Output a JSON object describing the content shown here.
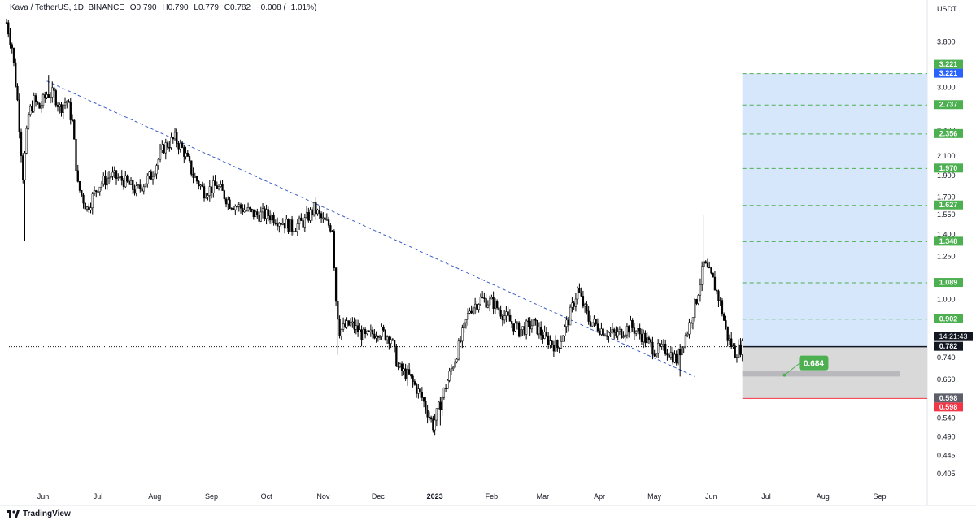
{
  "header": {
    "symbol": "Kava / TetherUS, 1D, BINANCE",
    "open": "O0.790",
    "high": "H0.790",
    "low": "L0.779",
    "close": "C0.782",
    "change": "−0.008 (−1.01%)"
  },
  "footer": {
    "brand": "TradingView",
    "logo_icon": "tradingview-logo-icon"
  },
  "chart_data": {
    "type": "candlestick",
    "title": "",
    "xlabel": "",
    "ylabel": "USDT",
    "y_scale": "log",
    "ylim": [
      0.38,
      4.3
    ],
    "y_ticks": [
      "3.800",
      "3.000",
      "2.400",
      "2.100",
      "1.900",
      "1.700",
      "1.550",
      "1.400",
      "1.250",
      "1.000",
      "0.740",
      "0.660",
      "0.540",
      "0.490",
      "0.445",
      "0.405"
    ],
    "x_ticks": [
      "Jun",
      "Jul",
      "Aug",
      "Sep",
      "Oct",
      "Nov",
      "Dec",
      "2023",
      "Feb",
      "Mar",
      "Apr",
      "May",
      "Jun",
      "Jul",
      "Aug",
      "Sep"
    ],
    "x_range": [
      "2022-05-12",
      "2023-09-27"
    ],
    "price_series": {
      "name": "Kava / TetherUS",
      "points": [
        [
          "2022-05-12",
          4.2
        ],
        [
          "2022-05-15",
          3.7
        ],
        [
          "2022-05-18",
          2.8
        ],
        [
          "2022-05-21",
          1.9
        ],
        [
          "2022-05-24",
          2.6
        ],
        [
          "2022-05-27",
          2.8
        ],
        [
          "2022-05-30",
          2.7
        ],
        [
          "2022-06-03",
          2.9
        ],
        [
          "2022-06-07",
          2.9
        ],
        [
          "2022-06-10",
          2.7
        ],
        [
          "2022-06-14",
          2.8
        ],
        [
          "2022-06-17",
          2.5
        ],
        [
          "2022-06-20",
          1.8
        ],
        [
          "2022-06-25",
          1.6
        ],
        [
          "2022-07-01",
          1.8
        ],
        [
          "2022-07-08",
          1.9
        ],
        [
          "2022-07-15",
          1.85
        ],
        [
          "2022-07-22",
          1.75
        ],
        [
          "2022-07-30",
          1.9
        ],
        [
          "2022-08-06",
          2.2
        ],
        [
          "2022-08-12",
          2.3
        ],
        [
          "2022-08-17",
          2.15
        ],
        [
          "2022-08-22",
          1.9
        ],
        [
          "2022-08-28",
          1.75
        ],
        [
          "2022-09-04",
          1.8
        ],
        [
          "2022-09-11",
          1.65
        ],
        [
          "2022-09-18",
          1.6
        ],
        [
          "2022-09-25",
          1.55
        ],
        [
          "2022-10-02",
          1.55
        ],
        [
          "2022-10-09",
          1.5
        ],
        [
          "2022-10-15",
          1.45
        ],
        [
          "2022-10-22",
          1.5
        ],
        [
          "2022-10-27",
          1.6
        ],
        [
          "2022-11-01",
          1.5
        ],
        [
          "2022-11-06",
          1.45
        ],
        [
          "2022-11-08",
          1.0
        ],
        [
          "2022-11-10",
          0.85
        ],
        [
          "2022-11-16",
          0.88
        ],
        [
          "2022-11-24",
          0.82
        ],
        [
          "2022-12-01",
          0.85
        ],
        [
          "2022-12-08",
          0.82
        ],
        [
          "2022-12-12",
          0.7
        ],
        [
          "2022-12-18",
          0.67
        ],
        [
          "2022-12-25",
          0.6
        ],
        [
          "2022-12-31",
          0.52
        ],
        [
          "2023-01-06",
          0.62
        ],
        [
          "2023-01-14",
          0.78
        ],
        [
          "2023-01-20",
          0.95
        ],
        [
          "2023-01-26",
          1.0
        ],
        [
          "2023-02-02",
          0.98
        ],
        [
          "2023-02-10",
          0.9
        ],
        [
          "2023-02-16",
          0.85
        ],
        [
          "2023-02-24",
          0.88
        ],
        [
          "2023-03-02",
          0.82
        ],
        [
          "2023-03-09",
          0.78
        ],
        [
          "2023-03-15",
          0.9
        ],
        [
          "2023-03-20",
          1.05
        ],
        [
          "2023-03-26",
          0.9
        ],
        [
          "2023-04-03",
          0.85
        ],
        [
          "2023-04-10",
          0.83
        ],
        [
          "2023-04-18",
          0.87
        ],
        [
          "2023-04-24",
          0.83
        ],
        [
          "2023-05-01",
          0.77
        ],
        [
          "2023-05-08",
          0.77
        ],
        [
          "2023-05-13",
          0.73
        ],
        [
          "2023-05-19",
          0.85
        ],
        [
          "2023-05-24",
          1.0
        ],
        [
          "2023-05-28",
          1.2
        ],
        [
          "2023-06-02",
          1.1
        ],
        [
          "2023-06-06",
          0.98
        ],
        [
          "2023-06-10",
          0.82
        ],
        [
          "2023-06-14",
          0.76
        ],
        [
          "2023-06-18",
          0.782
        ]
      ],
      "spikes": [
        [
          "2022-05-22",
          1.35
        ],
        [
          "2022-06-04",
          3.2
        ],
        [
          "2022-11-09",
          0.75
        ],
        [
          "2023-01-04",
          0.52
        ],
        [
          "2023-05-15",
          0.67
        ],
        [
          "2023-05-28",
          1.55
        ]
      ]
    },
    "trendline": {
      "from": [
        "2022-06-03",
        3.1
      ],
      "to": [
        "2023-05-23",
        0.67
      ],
      "style": "dashed",
      "color": "#3d5cc6"
    },
    "current_price_line": {
      "value": 0.782,
      "style": "dotted"
    },
    "position_tool": {
      "type": "long",
      "start": "2023-06-18",
      "end": "2023-09-27",
      "entry": 0.782,
      "target": 3.221,
      "stop": 0.598,
      "target_color": "#d6e6fb",
      "stop_color": "#d9d9d9"
    },
    "take_profit_levels": [
      0.902,
      1.089,
      1.348,
      1.627,
      1.97,
      2.356,
      2.737,
      3.221
    ],
    "target_zone": {
      "start": "2023-06-18",
      "end": "2023-09-12",
      "low": 0.67,
      "high": 0.69
    },
    "callout": {
      "label": "0.684",
      "anchor_date": "2023-07-11",
      "anchor_value": 0.675,
      "color": "#4caf50"
    },
    "price_labels": [
      {
        "value": 3.221,
        "text": "3.221",
        "color": "#2962ff"
      },
      {
        "value": 3.221,
        "text": "3.221",
        "color": "#4caf50"
      },
      {
        "value": 2.737,
        "text": "2.737",
        "color": "#4caf50"
      },
      {
        "value": 2.356,
        "text": "2.356",
        "color": "#4caf50"
      },
      {
        "value": 1.97,
        "text": "1.970",
        "color": "#4caf50"
      },
      {
        "value": 1.627,
        "text": "1.627",
        "color": "#4caf50"
      },
      {
        "value": 1.348,
        "text": "1.348",
        "color": "#4caf50"
      },
      {
        "value": 1.089,
        "text": "1.089",
        "color": "#4caf50"
      },
      {
        "value": 0.902,
        "text": "0.902",
        "color": "#4caf50"
      },
      {
        "value": 0.782,
        "text": "0.782",
        "color": "#131722"
      },
      {
        "value": 0.598,
        "text": "0.598",
        "color": "#5d606b"
      },
      {
        "value": 0.598,
        "text": "0.598",
        "color": "#f23645"
      }
    ],
    "countdown": "14:21:43",
    "grid": false,
    "legend": "none"
  }
}
